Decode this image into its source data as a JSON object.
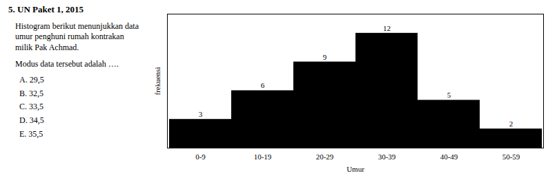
{
  "chart_data": {
    "type": "bar",
    "title": "5. UN Paket 1, 2015",
    "subtitle": "Histogram berikut menunjukkan data umur penghuni rumah kontrakan milik Pak Achmad.",
    "annotations": [
      "Modus data tersebut adalah ….",
      "A. 29,5",
      "B. 32,5",
      "C. 33,5",
      "D. 34,5",
      "E. 35,5"
    ],
    "categories": [
      "0-9",
      "10-19",
      "20-29",
      "30-39",
      "40-49",
      "50-59"
    ],
    "values": [
      3,
      6,
      9,
      12,
      5,
      2
    ],
    "xlabel": "Umur",
    "ylabel": "frekuensi",
    "ylim": [
      0,
      14
    ],
    "data_labels": true,
    "tick_labels": "x",
    "grid": false
  }
}
